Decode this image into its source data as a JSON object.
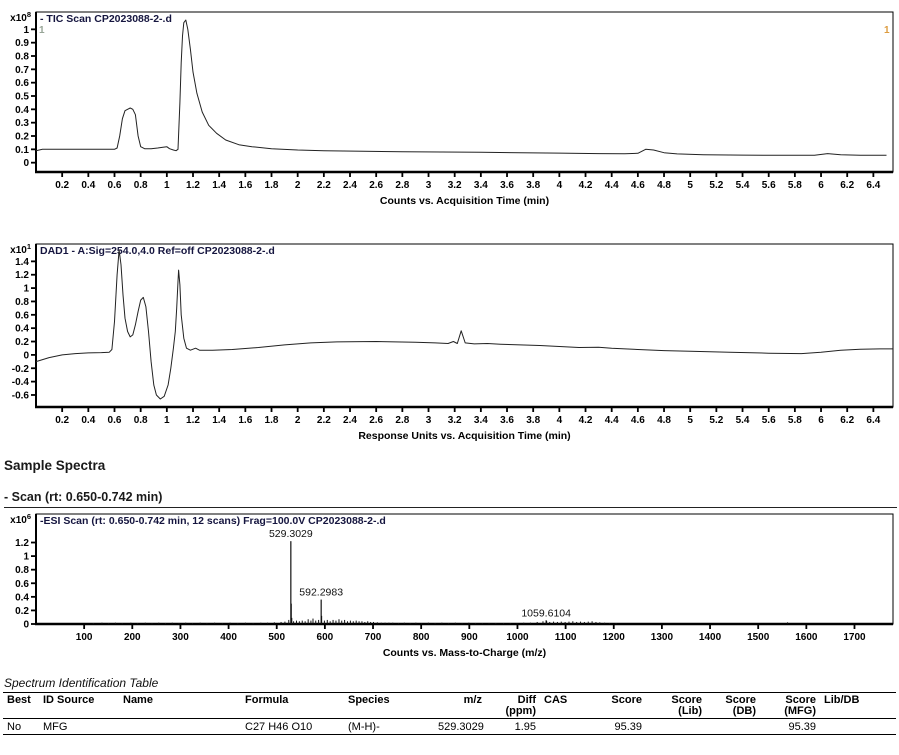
{
  "page": {
    "headings": {
      "sample_spectra": "Sample Spectra",
      "scan_heading": "- Scan (rt: 0.650-0.742 min)",
      "table_title": "Spectrum Identification Table"
    }
  },
  "chart_data": [
    {
      "id": "tic",
      "type": "line",
      "title": "- TIC Scan CP2023088-2-.d",
      "scale": {
        "base": "x10",
        "exp": "8"
      },
      "xlabel": "Counts vs. Acquisition Time (min)",
      "xlim": [
        0,
        6.55
      ],
      "ylim": [
        -0.07,
        1.13
      ],
      "x_ticks": [
        0.2,
        0.4,
        0.6,
        0.8,
        1,
        1.2,
        1.4,
        1.6,
        1.8,
        2,
        2.2,
        2.4,
        2.6,
        2.8,
        3,
        3.2,
        3.4,
        3.6,
        3.8,
        4,
        4.2,
        4.4,
        4.6,
        4.8,
        5,
        5.2,
        5.4,
        5.6,
        5.8,
        6,
        6.2,
        6.4
      ],
      "y_ticks": [
        1,
        0.9,
        0.8,
        0.7,
        0.6,
        0.5,
        0.4,
        0.3,
        0.2,
        0.1,
        0
      ],
      "markers": [
        {
          "text": "1",
          "side": "left",
          "color": "#97a597"
        },
        {
          "text": "1",
          "side": "right",
          "color": "#dd9c3f"
        }
      ],
      "points": [
        [
          0,
          0.09
        ],
        [
          0.05,
          0.1
        ],
        [
          0.2,
          0.1
        ],
        [
          0.4,
          0.1
        ],
        [
          0.55,
          0.1
        ],
        [
          0.6,
          0.1
        ],
        [
          0.62,
          0.11
        ],
        [
          0.64,
          0.2
        ],
        [
          0.66,
          0.33
        ],
        [
          0.68,
          0.39
        ],
        [
          0.7,
          0.4
        ],
        [
          0.72,
          0.41
        ],
        [
          0.74,
          0.4
        ],
        [
          0.76,
          0.36
        ],
        [
          0.78,
          0.2
        ],
        [
          0.8,
          0.12
        ],
        [
          0.83,
          0.105
        ],
        [
          0.88,
          0.105
        ],
        [
          0.93,
          0.11
        ],
        [
          0.97,
          0.115
        ],
        [
          1,
          0.12
        ],
        [
          1.02,
          0.105
        ],
        [
          1.05,
          0.095
        ],
        [
          1.07,
          0.09
        ],
        [
          1.085,
          0.1
        ],
        [
          1.1,
          0.45
        ],
        [
          1.11,
          0.75
        ],
        [
          1.12,
          0.95
        ],
        [
          1.13,
          1.05
        ],
        [
          1.145,
          1.07
        ],
        [
          1.16,
          1
        ],
        [
          1.18,
          0.85
        ],
        [
          1.2,
          0.68
        ],
        [
          1.23,
          0.52
        ],
        [
          1.27,
          0.38
        ],
        [
          1.32,
          0.28
        ],
        [
          1.38,
          0.22
        ],
        [
          1.45,
          0.17
        ],
        [
          1.55,
          0.135
        ],
        [
          1.65,
          0.12
        ],
        [
          1.8,
          0.105
        ],
        [
          2,
          0.095
        ],
        [
          2.2,
          0.09
        ],
        [
          2.5,
          0.085
        ],
        [
          2.8,
          0.082
        ],
        [
          3.1,
          0.08
        ],
        [
          3.4,
          0.078
        ],
        [
          3.7,
          0.075
        ],
        [
          4,
          0.072
        ],
        [
          4.3,
          0.068
        ],
        [
          4.5,
          0.067
        ],
        [
          4.6,
          0.07
        ],
        [
          4.66,
          0.1
        ],
        [
          4.72,
          0.095
        ],
        [
          4.8,
          0.075
        ],
        [
          4.9,
          0.066
        ],
        [
          5.1,
          0.06
        ],
        [
          5.4,
          0.057
        ],
        [
          5.7,
          0.055
        ],
        [
          5.95,
          0.055
        ],
        [
          6.05,
          0.068
        ],
        [
          6.15,
          0.06
        ],
        [
          6.3,
          0.055
        ],
        [
          6.5,
          0.055
        ]
      ]
    },
    {
      "id": "dad",
      "type": "line",
      "title": "DAD1 - A:Sig=254.0,4.0  Ref=off CP2023088-2-.d",
      "scale": {
        "base": "x10",
        "exp": "1"
      },
      "xlabel": "Response Units vs. Acquisition Time (min)",
      "xlim": [
        0,
        6.55
      ],
      "ylim": [
        -0.78,
        1.66
      ],
      "x_ticks": [
        0.2,
        0.4,
        0.6,
        0.8,
        1,
        1.2,
        1.4,
        1.6,
        1.8,
        2,
        2.2,
        2.4,
        2.6,
        2.8,
        3,
        3.2,
        3.4,
        3.6,
        3.8,
        4,
        4.2,
        4.4,
        4.6,
        4.8,
        5,
        5.2,
        5.4,
        5.6,
        5.8,
        6,
        6.2,
        6.4
      ],
      "y_ticks": [
        1.4,
        1.2,
        1,
        0.8,
        0.6,
        0.4,
        0.2,
        0,
        -0.2,
        -0.4,
        -0.6
      ],
      "points": [
        [
          0,
          -0.1
        ],
        [
          0.1,
          -0.04
        ],
        [
          0.2,
          0
        ],
        [
          0.3,
          0.02
        ],
        [
          0.4,
          0.03
        ],
        [
          0.5,
          0.035
        ],
        [
          0.56,
          0.04
        ],
        [
          0.58,
          0.08
        ],
        [
          0.6,
          0.5
        ],
        [
          0.62,
          1.2
        ],
        [
          0.635,
          1.57
        ],
        [
          0.65,
          1.35
        ],
        [
          0.665,
          0.9
        ],
        [
          0.68,
          0.55
        ],
        [
          0.7,
          0.35
        ],
        [
          0.72,
          0.27
        ],
        [
          0.74,
          0.3
        ],
        [
          0.76,
          0.45
        ],
        [
          0.78,
          0.65
        ],
        [
          0.8,
          0.82
        ],
        [
          0.82,
          0.86
        ],
        [
          0.84,
          0.72
        ],
        [
          0.86,
          0.35
        ],
        [
          0.88,
          -0.1
        ],
        [
          0.9,
          -0.45
        ],
        [
          0.92,
          -0.6
        ],
        [
          0.95,
          -0.66
        ],
        [
          0.98,
          -0.62
        ],
        [
          1.01,
          -0.45
        ],
        [
          1.03,
          -0.2
        ],
        [
          1.05,
          0.1
        ],
        [
          1.065,
          0.35
        ],
        [
          1.075,
          0.7
        ],
        [
          1.085,
          1.1
        ],
        [
          1.09,
          1.27
        ],
        [
          1.1,
          1.05
        ],
        [
          1.11,
          0.6
        ],
        [
          1.13,
          0.25
        ],
        [
          1.15,
          0.1
        ],
        [
          1.18,
          0.07
        ],
        [
          1.22,
          0.1
        ],
        [
          1.25,
          0.07
        ],
        [
          1.35,
          0.07
        ],
        [
          1.5,
          0.08
        ],
        [
          1.7,
          0.11
        ],
        [
          1.9,
          0.15
        ],
        [
          2.1,
          0.18
        ],
        [
          2.3,
          0.195
        ],
        [
          2.6,
          0.2
        ],
        [
          2.9,
          0.19
        ],
        [
          3.05,
          0.18
        ],
        [
          3.15,
          0.17
        ],
        [
          3.19,
          0.2
        ],
        [
          3.22,
          0.17
        ],
        [
          3.25,
          0.36
        ],
        [
          3.28,
          0.18
        ],
        [
          3.35,
          0.165
        ],
        [
          3.45,
          0.17
        ],
        [
          3.55,
          0.16
        ],
        [
          3.7,
          0.15
        ],
        [
          3.85,
          0.14
        ],
        [
          4,
          0.125
        ],
        [
          4.15,
          0.11
        ],
        [
          4.3,
          0.115
        ],
        [
          4.4,
          0.1
        ],
        [
          4.6,
          0.08
        ],
        [
          4.8,
          0.065
        ],
        [
          5,
          0.055
        ],
        [
          5.3,
          0.04
        ],
        [
          5.6,
          0.025
        ],
        [
          5.85,
          0.02
        ],
        [
          6,
          0.04
        ],
        [
          6.15,
          0.07
        ],
        [
          6.3,
          0.085
        ],
        [
          6.45,
          0.09
        ],
        [
          6.55,
          0.09
        ]
      ]
    },
    {
      "id": "esi",
      "type": "stick",
      "title": "-ESI Scan (rt: 0.650-0.742 min, 12 scans) Frag=100.0V CP2023088-2-.d",
      "scale": {
        "base": "x10",
        "exp": "6"
      },
      "xlabel": "Counts vs. Mass-to-Charge (m/z)",
      "xlim": [
        0,
        1780
      ],
      "ylim": [
        0,
        1.62
      ],
      "x_ticks": [
        100,
        200,
        300,
        400,
        500,
        600,
        700,
        800,
        900,
        1000,
        1100,
        1200,
        1300,
        1400,
        1500,
        1600,
        1700
      ],
      "y_ticks": [
        1.2,
        1,
        0.8,
        0.6,
        0.4,
        0.2,
        0
      ],
      "labeled_peaks": [
        {
          "mz": 529.3029,
          "h": 1.22,
          "label": "529.3029"
        },
        {
          "mz": 592.2983,
          "h": 0.36,
          "label": "592.2983"
        },
        {
          "mz": 1059.6104,
          "h": 0.055,
          "label": "1059.6104"
        }
      ],
      "peaks": [
        [
          119,
          0.015
        ],
        [
          137,
          0.02
        ],
        [
          151,
          0.015
        ],
        [
          165,
          0.02
        ],
        [
          179,
          0.015
        ],
        [
          197,
          0.02
        ],
        [
          211,
          0.015
        ],
        [
          227,
          0.02
        ],
        [
          241,
          0.015
        ],
        [
          255,
          0.02
        ],
        [
          269,
          0.015
        ],
        [
          283,
          0.02
        ],
        [
          297,
          0.015
        ],
        [
          311,
          0.02
        ],
        [
          325,
          0.015
        ],
        [
          341,
          0.02
        ],
        [
          355,
          0.015
        ],
        [
          371,
          0.02
        ],
        [
          387,
          0.015
        ],
        [
          403,
          0.02
        ],
        [
          419,
          0.015
        ],
        [
          435,
          0.02
        ],
        [
          451,
          0.015
        ],
        [
          467,
          0.02
        ],
        [
          481,
          0.02
        ],
        [
          495,
          0.025
        ],
        [
          509,
          0.03
        ],
        [
          517,
          0.035
        ],
        [
          525,
          0.06
        ],
        [
          530.3,
          0.3
        ],
        [
          531.3,
          0.09
        ],
        [
          535,
          0.04
        ],
        [
          541,
          0.05
        ],
        [
          547,
          0.04
        ],
        [
          553,
          0.05
        ],
        [
          559,
          0.04
        ],
        [
          565.3,
          0.07
        ],
        [
          571,
          0.05
        ],
        [
          575.3,
          0.08
        ],
        [
          581,
          0.05
        ],
        [
          587,
          0.06
        ],
        [
          593.3,
          0.12
        ],
        [
          599,
          0.05
        ],
        [
          605,
          0.06
        ],
        [
          611,
          0.04
        ],
        [
          617,
          0.06
        ],
        [
          623,
          0.05
        ],
        [
          629.3,
          0.07
        ],
        [
          635,
          0.05
        ],
        [
          641,
          0.06
        ],
        [
          647,
          0.04
        ],
        [
          653,
          0.05
        ],
        [
          659,
          0.04
        ],
        [
          665,
          0.05
        ],
        [
          671,
          0.04
        ],
        [
          677,
          0.04
        ],
        [
          683,
          0.03
        ],
        [
          689,
          0.04
        ],
        [
          695,
          0.03
        ],
        [
          701,
          0.03
        ],
        [
          709,
          0.025
        ],
        [
          717,
          0.02
        ],
        [
          725,
          0.02
        ],
        [
          733,
          0.02
        ],
        [
          741,
          0.02
        ],
        [
          753,
          0.015
        ],
        [
          765,
          0.02
        ],
        [
          777,
          0.015
        ],
        [
          789,
          0.02
        ],
        [
          801,
          0.015
        ],
        [
          815,
          0.02
        ],
        [
          829,
          0.015
        ],
        [
          843,
          0.02
        ],
        [
          857,
          0.015
        ],
        [
          871,
          0.02
        ],
        [
          885,
          0.015
        ],
        [
          899,
          0.02
        ],
        [
          913,
          0.015
        ],
        [
          927,
          0.015
        ],
        [
          941,
          0.015
        ],
        [
          955,
          0.015
        ],
        [
          971,
          0.015
        ],
        [
          985,
          0.015
        ],
        [
          999,
          0.015
        ],
        [
          1013,
          0.02
        ],
        [
          1027,
          0.02
        ],
        [
          1041,
          0.03
        ],
        [
          1053,
          0.04
        ],
        [
          1060.6,
          0.045
        ],
        [
          1067,
          0.03
        ],
        [
          1075,
          0.035
        ],
        [
          1083,
          0.03
        ],
        [
          1091,
          0.035
        ],
        [
          1099,
          0.03
        ],
        [
          1107,
          0.035
        ],
        [
          1115,
          0.04
        ],
        [
          1123,
          0.03
        ],
        [
          1131,
          0.035
        ],
        [
          1139,
          0.03
        ],
        [
          1147,
          0.035
        ],
        [
          1155,
          0.04
        ],
        [
          1163,
          0.03
        ],
        [
          1171,
          0.025
        ],
        [
          1181,
          0.02
        ],
        [
          1191,
          0.015
        ],
        [
          1205,
          0.015
        ],
        [
          1561,
          0.025
        ]
      ]
    }
  ],
  "table": {
    "headers": [
      [
        "Best"
      ],
      [
        "ID Source"
      ],
      [
        "Name"
      ],
      [
        "Formula"
      ],
      [
        "Species"
      ],
      [
        "m/z"
      ],
      [
        "Diff",
        "(ppm)"
      ],
      [
        "CAS"
      ],
      [
        "Score"
      ],
      [
        "Score",
        "(Lib)"
      ],
      [
        "Score",
        "(DB)"
      ],
      [
        "Score",
        "(MFG)"
      ],
      [
        "Lib/DB"
      ]
    ],
    "rows": [
      [
        "No",
        "MFG",
        "",
        "C27 H46 O10",
        "(M-H)-",
        "529.3029",
        "1.95",
        "",
        "95.39",
        "",
        "",
        "95.39",
        ""
      ]
    ]
  }
}
